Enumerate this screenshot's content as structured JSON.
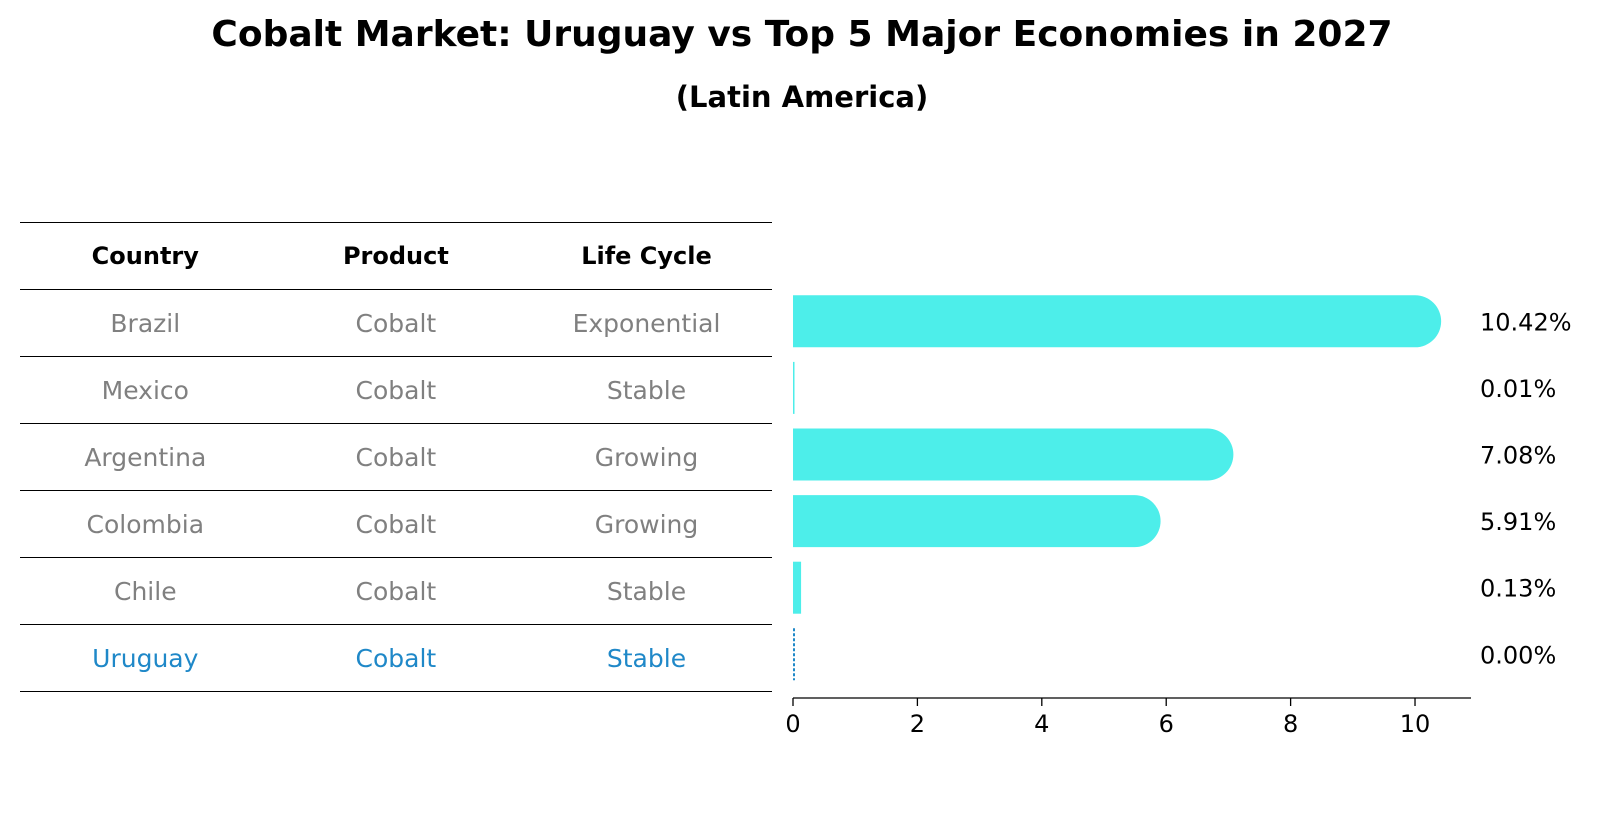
{
  "title": "Cobalt Market: Uruguay vs Top 5 Major Economies in 2027",
  "subtitle": "(Latin America)",
  "table": {
    "headers": [
      "Country",
      "Product",
      "Life Cycle"
    ],
    "rows": [
      {
        "country": "Brazil",
        "product": "Cobalt",
        "life_cycle": "Exponential"
      },
      {
        "country": "Mexico",
        "product": "Cobalt",
        "life_cycle": "Stable"
      },
      {
        "country": "Argentina",
        "product": "Cobalt",
        "life_cycle": "Growing"
      },
      {
        "country": "Colombia",
        "product": "Cobalt",
        "life_cycle": "Growing"
      },
      {
        "country": "Chile",
        "product": "Cobalt",
        "life_cycle": "Stable"
      },
      {
        "country": "Uruguay",
        "product": "Cobalt",
        "life_cycle": "Stable"
      }
    ],
    "highlight_row": "Uruguay",
    "colors": {
      "text": "#808080",
      "highlight": "#1f88c8"
    }
  },
  "chart_data": {
    "type": "bar",
    "orientation": "horizontal",
    "categories": [
      "Brazil",
      "Mexico",
      "Argentina",
      "Colombia",
      "Chile",
      "Uruguay"
    ],
    "values": [
      10.42,
      0.01,
      7.08,
      5.91,
      0.13,
      0.0
    ],
    "value_labels": [
      "10.42%",
      "0.01%",
      "7.08%",
      "5.91%",
      "0.13%",
      "0.00%"
    ],
    "xlim": [
      0,
      10.9
    ],
    "xticks": [
      0,
      2,
      4,
      6,
      8,
      10
    ],
    "bar_color": "#4deeea",
    "highlight_color": "#1f88c8",
    "grid": false
  }
}
